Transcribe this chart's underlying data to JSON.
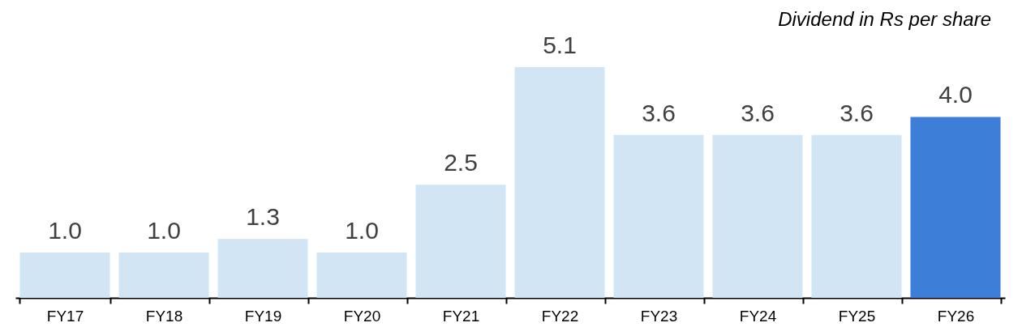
{
  "chart_data": {
    "type": "bar",
    "title": "Dividend in Rs per share",
    "categories": [
      "FY17",
      "FY18",
      "FY19",
      "FY20",
      "FY21",
      "FY22",
      "FY23",
      "FY24",
      "FY25",
      "FY26"
    ],
    "values": [
      1.0,
      1.0,
      1.3,
      1.0,
      2.5,
      5.1,
      3.6,
      3.6,
      3.6,
      4.0
    ],
    "value_labels": [
      "1.0",
      "1.0",
      "1.3",
      "1.0",
      "2.5",
      "5.1",
      "3.6",
      "3.6",
      "3.6",
      "4.0"
    ],
    "colors": [
      "#d1e5f4",
      "#d1e5f4",
      "#d1e5f4",
      "#d1e5f4",
      "#d1e5f4",
      "#d1e5f4",
      "#d1e5f4",
      "#d1e5f4",
      "#d1e5f4",
      "#3d7ed8"
    ]
  }
}
